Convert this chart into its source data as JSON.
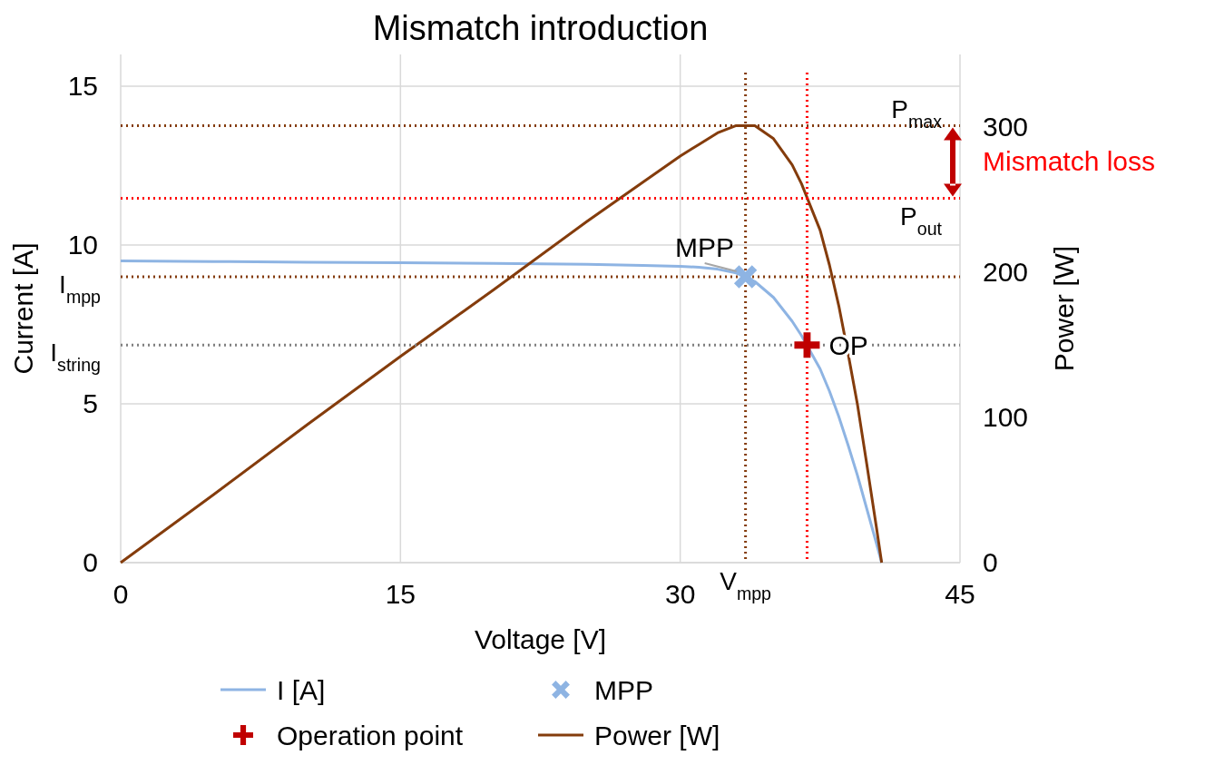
{
  "chart_data": {
    "type": "line",
    "title": "Mismatch introduction",
    "xlabel": "Voltage [V]",
    "ylabel": "Current [A]",
    "y2label": "Power [W]",
    "xlim": [
      0,
      45
    ],
    "xticks": [
      0,
      15,
      30,
      45
    ],
    "ylim": [
      0,
      16
    ],
    "yticks": [
      0,
      5,
      10,
      15
    ],
    "y2lim": [
      0,
      350
    ],
    "y2ticks": [
      0,
      100,
      200,
      300
    ],
    "grid": true,
    "legend": "bottom",
    "marker": "none",
    "line_style": "solid",
    "x": [
      0,
      5,
      10,
      15,
      20,
      25,
      28,
      30,
      31,
      32,
      33,
      33.5,
      34,
      35,
      36,
      36.5,
      37.5,
      38,
      38.5,
      39,
      39.5,
      40,
      40.5,
      40.8
    ],
    "series": [
      {
        "name": "I [A]",
        "color": "#8eb4e3",
        "values": [
          9.5,
          9.48,
          9.46,
          9.44,
          9.42,
          9.39,
          9.36,
          9.33,
          9.3,
          9.24,
          9.12,
          9.0,
          8.85,
          8.35,
          7.6,
          7.15,
          6.1,
          5.4,
          4.6,
          3.7,
          2.75,
          1.7,
          0.65,
          0
        ]
      },
      {
        "name": "MPP",
        "type": "scatter",
        "marker": "cross",
        "color": "#8eb4e3",
        "x": [
          33.5
        ],
        "values": [
          9.0
        ]
      },
      {
        "name": "Operation point",
        "type": "scatter",
        "marker": "cross",
        "color": "#c00000",
        "x": [
          36.8
        ],
        "values": [
          6.85
        ]
      },
      {
        "name": "Power [W]",
        "axis": "y2",
        "color": "#843c0c",
        "values": [
          0,
          47,
          95,
          142,
          188,
          235,
          262,
          280,
          288,
          296,
          301,
          301,
          301,
          292,
          274,
          261,
          229,
          205,
          177,
          144,
          109,
          68,
          26,
          0
        ]
      }
    ],
    "ref_lines": [
      {
        "axis": "y",
        "value": 9.0,
        "label": "I$_{mpp}$",
        "color": "#843c0c",
        "line_style": "dotted"
      },
      {
        "axis": "y",
        "value": 6.85,
        "label": "I$_{string}$",
        "color": "#808080",
        "line_style": "dotted"
      },
      {
        "axis": "x",
        "value": 33.5,
        "label": "V$_{mpp}$",
        "color": "#843c0c",
        "line_style": "dotted"
      },
      {
        "axis": "x",
        "value": 36.8,
        "label": null,
        "color": "#ff0000",
        "line_style": "dotted"
      },
      {
        "axis": "y2",
        "value": 301,
        "label": "P$_{max}$",
        "color": "#843c0c",
        "line_style": "dotted"
      },
      {
        "axis": "y2",
        "value": 251,
        "label": "P$_{out}$",
        "color": "#ff0000",
        "line_style": "dotted"
      }
    ],
    "annotations": [
      {
        "text": "MPP",
        "x": 33.5,
        "y": 9.0
      },
      {
        "text": "OP",
        "x": 36.8,
        "y": 6.85
      },
      "Mismatch loss"
    ]
  }
}
